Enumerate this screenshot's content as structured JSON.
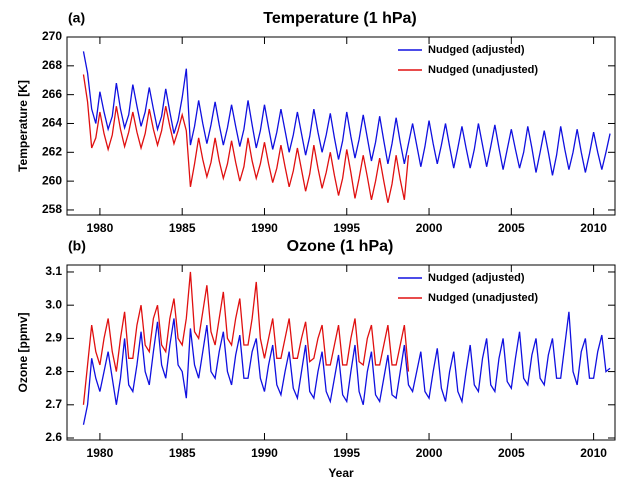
{
  "chart_data": [
    {
      "type": "line",
      "label": "(a)",
      "title": "Temperature (1 hPa)",
      "ylabel": "Temperature [K]",
      "xlim": [
        1978,
        2011.3
      ],
      "xticks": [
        1980,
        1985,
        1990,
        1995,
        2000,
        2005,
        2010
      ],
      "ylim": [
        257.65,
        270
      ],
      "yticks": [
        258,
        260,
        262,
        264,
        266,
        268,
        270
      ],
      "x": [
        1979,
        1979.25,
        1979.5,
        1979.75,
        1980,
        1980.25,
        1980.5,
        1980.75,
        1981,
        1981.25,
        1981.5,
        1981.75,
        1982,
        1982.25,
        1982.5,
        1982.75,
        1983,
        1983.25,
        1983.5,
        1983.75,
        1984,
        1984.25,
        1984.5,
        1984.75,
        1985,
        1985.25,
        1985.5,
        1985.75,
        1986,
        1986.25,
        1986.5,
        1986.75,
        1987,
        1987.25,
        1987.5,
        1987.75,
        1988,
        1988.25,
        1988.5,
        1988.75,
        1989,
        1989.25,
        1989.5,
        1989.75,
        1990,
        1990.25,
        1990.5,
        1990.75,
        1991,
        1991.25,
        1991.5,
        1991.75,
        1992,
        1992.25,
        1992.5,
        1992.75,
        1993,
        1993.25,
        1993.5,
        1993.75,
        1994,
        1994.25,
        1994.5,
        1994.75,
        1995,
        1995.25,
        1995.5,
        1995.75,
        1996,
        1996.25,
        1996.5,
        1996.75,
        1997,
        1997.25,
        1997.5,
        1997.75,
        1998,
        1998.25,
        1998.5,
        1998.75,
        1999,
        1999.25,
        1999.5,
        1999.75,
        2000,
        2000.25,
        2000.5,
        2000.75,
        2001,
        2001.25,
        2001.5,
        2001.75,
        2002,
        2002.25,
        2002.5,
        2002.75,
        2003,
        2003.25,
        2003.5,
        2003.75,
        2004,
        2004.25,
        2004.5,
        2004.75,
        2005,
        2005.25,
        2005.5,
        2005.75,
        2006,
        2006.25,
        2006.5,
        2006.75,
        2007,
        2007.25,
        2007.5,
        2007.75,
        2008,
        2008.25,
        2008.5,
        2008.75,
        2009,
        2009.25,
        2009.5,
        2009.75,
        2010,
        2010.25,
        2010.5,
        2010.75,
        2011
      ],
      "series": [
        {
          "name": "Nudged (adjusted)",
          "color": "#1010e0",
          "values": [
            269.0,
            267.5,
            265.0,
            264.0,
            266.2,
            264.8,
            263.6,
            264.5,
            266.8,
            265.0,
            263.7,
            264.6,
            266.7,
            265.2,
            263.8,
            264.8,
            266.5,
            265.0,
            263.6,
            264.5,
            266.4,
            264.8,
            263.3,
            264.2,
            265.8,
            267.8,
            262.5,
            263.8,
            265.6,
            264.0,
            262.6,
            263.9,
            265.5,
            263.9,
            262.5,
            263.7,
            265.3,
            263.8,
            262.4,
            263.6,
            265.6,
            263.9,
            262.3,
            263.5,
            265.3,
            263.7,
            262.2,
            263.4,
            265.0,
            263.5,
            262.0,
            263.2,
            264.8,
            263.3,
            261.8,
            263.1,
            265.0,
            263.4,
            262.0,
            263.2,
            264.7,
            263.0,
            261.5,
            262.8,
            264.8,
            263.1,
            261.6,
            262.9,
            264.6,
            263.0,
            261.4,
            262.7,
            264.5,
            262.8,
            261.2,
            262.6,
            264.4,
            262.7,
            261.2,
            262.6,
            264.0,
            262.5,
            261.0,
            262.4,
            264.2,
            262.6,
            261.2,
            262.5,
            264.0,
            262.4,
            260.9,
            262.3,
            263.8,
            262.3,
            260.9,
            262.2,
            264.0,
            262.5,
            261.0,
            262.4,
            263.9,
            262.3,
            260.8,
            262.2,
            263.6,
            262.2,
            260.9,
            262.0,
            263.8,
            262.3,
            260.6,
            262.0,
            263.5,
            262.0,
            260.4,
            261.8,
            263.8,
            262.2,
            260.8,
            262.0,
            263.6,
            262.0,
            260.6,
            261.9,
            263.4,
            262.0,
            260.8,
            262.0,
            263.3
          ]
        },
        {
          "name": "Nudged (unadjusted)",
          "color": "#e01010",
          "values": [
            267.4,
            265.5,
            262.3,
            263.0,
            264.8,
            263.3,
            262.2,
            263.2,
            265.2,
            263.6,
            262.4,
            263.4,
            264.8,
            263.4,
            262.3,
            263.3,
            265.0,
            263.6,
            262.5,
            263.5,
            265.2,
            263.8,
            262.6,
            263.5,
            264.6,
            263.5,
            259.6,
            261.2,
            263.0,
            261.5,
            260.3,
            261.3,
            263.0,
            261.4,
            260.2,
            261.2,
            262.8,
            261.3,
            260.0,
            261.0,
            263.0,
            261.4,
            260.2,
            261.2,
            262.7,
            261.2,
            259.9,
            260.9,
            262.5,
            261.0,
            259.6,
            260.7,
            262.3,
            260.8,
            259.3,
            260.5,
            262.5,
            260.9,
            259.5,
            260.6,
            262.0,
            260.4,
            259.0,
            260.2,
            262.2,
            260.6,
            258.8,
            260.2,
            261.8,
            260.3,
            258.7,
            260.0,
            261.6,
            260.0,
            258.5,
            259.8,
            261.8,
            260.1,
            258.7,
            261.8,
            null,
            null,
            null,
            null,
            null,
            null,
            null,
            null,
            null,
            null,
            null,
            null,
            null,
            null,
            null,
            null,
            null,
            null,
            null,
            null,
            null,
            null,
            null,
            null,
            null,
            null,
            null,
            null,
            null,
            null,
            null,
            null,
            null,
            null,
            null,
            null,
            null,
            null,
            null,
            null,
            null,
            null,
            null,
            null,
            null,
            null,
            null,
            null,
            null
          ]
        }
      ]
    },
    {
      "type": "line",
      "label": "(b)",
      "title": "Ozone (1 hPa)",
      "ylabel": "Ozone [ppmv]",
      "xlabel": "Year",
      "xlim": [
        1978,
        2011.3
      ],
      "xticks": [
        1980,
        1985,
        1990,
        1995,
        2000,
        2005,
        2010
      ],
      "ylim": [
        2.594,
        3.121
      ],
      "yticks": [
        2.6,
        2.7,
        2.8,
        2.9,
        {
          "value": 3,
          "label": "3.0"
        },
        3.1
      ],
      "x": [
        1979,
        1979.25,
        1979.5,
        1979.75,
        1980,
        1980.25,
        1980.5,
        1980.75,
        1981,
        1981.25,
        1981.5,
        1981.75,
        1982,
        1982.25,
        1982.5,
        1982.75,
        1983,
        1983.25,
        1983.5,
        1983.75,
        1984,
        1984.25,
        1984.5,
        1984.75,
        1985,
        1985.25,
        1985.5,
        1985.75,
        1986,
        1986.25,
        1986.5,
        1986.75,
        1987,
        1987.25,
        1987.5,
        1987.75,
        1988,
        1988.25,
        1988.5,
        1988.75,
        1989,
        1989.25,
        1989.5,
        1989.75,
        1990,
        1990.25,
        1990.5,
        1990.75,
        1991,
        1991.25,
        1991.5,
        1991.75,
        1992,
        1992.25,
        1992.5,
        1992.75,
        1993,
        1993.25,
        1993.5,
        1993.75,
        1994,
        1994.25,
        1994.5,
        1994.75,
        1995,
        1995.25,
        1995.5,
        1995.75,
        1996,
        1996.25,
        1996.5,
        1996.75,
        1997,
        1997.25,
        1997.5,
        1997.75,
        1998,
        1998.25,
        1998.5,
        1998.75,
        1999,
        1999.25,
        1999.5,
        1999.75,
        2000,
        2000.25,
        2000.5,
        2000.75,
        2001,
        2001.25,
        2001.5,
        2001.75,
        2002,
        2002.25,
        2002.5,
        2002.75,
        2003,
        2003.25,
        2003.5,
        2003.75,
        2004,
        2004.25,
        2004.5,
        2004.75,
        2005,
        2005.25,
        2005.5,
        2005.75,
        2006,
        2006.25,
        2006.5,
        2006.75,
        2007,
        2007.25,
        2007.5,
        2007.75,
        2008,
        2008.25,
        2008.5,
        2008.75,
        2009,
        2009.25,
        2009.5,
        2009.75,
        2010,
        2010.25,
        2010.5,
        2010.75,
        2011
      ],
      "series": [
        {
          "name": "Nudged (adjusted)",
          "color": "#1010e0",
          "values": [
            2.64,
            2.7,
            2.84,
            2.78,
            2.74,
            2.8,
            2.86,
            2.78,
            2.7,
            2.78,
            2.9,
            2.76,
            2.74,
            2.82,
            2.92,
            2.8,
            2.76,
            2.86,
            2.95,
            2.82,
            2.78,
            2.88,
            2.96,
            2.82,
            2.8,
            2.72,
            2.93,
            2.82,
            2.78,
            2.86,
            2.94,
            2.8,
            2.78,
            2.86,
            2.92,
            2.8,
            2.76,
            2.85,
            2.91,
            2.78,
            2.78,
            2.86,
            2.9,
            2.78,
            2.74,
            2.82,
            2.88,
            2.76,
            2.73,
            2.8,
            2.86,
            2.75,
            2.72,
            2.8,
            2.88,
            2.74,
            2.72,
            2.8,
            2.86,
            2.74,
            2.71,
            2.78,
            2.85,
            2.73,
            2.71,
            2.8,
            2.88,
            2.74,
            2.7,
            2.8,
            2.86,
            2.73,
            2.71,
            2.78,
            2.85,
            2.73,
            2.72,
            2.8,
            2.88,
            2.76,
            2.74,
            2.8,
            2.86,
            2.74,
            2.72,
            2.8,
            2.87,
            2.75,
            2.71,
            2.8,
            2.86,
            2.74,
            2.71,
            2.8,
            2.88,
            2.76,
            2.74,
            2.84,
            2.9,
            2.76,
            2.74,
            2.84,
            2.9,
            2.77,
            2.75,
            2.84,
            2.92,
            2.78,
            2.76,
            2.85,
            2.9,
            2.78,
            2.76,
            2.85,
            2.9,
            2.78,
            2.78,
            2.88,
            2.98,
            2.8,
            2.76,
            2.86,
            2.9,
            2.78,
            2.78,
            2.86,
            2.91,
            2.8,
            2.81
          ]
        },
        {
          "name": "Nudged (unadjusted)",
          "color": "#e01010",
          "values": [
            2.7,
            2.82,
            2.94,
            2.86,
            2.82,
            2.9,
            2.96,
            2.86,
            2.8,
            2.9,
            2.98,
            2.84,
            2.84,
            2.94,
            3.0,
            2.88,
            2.86,
            2.96,
            3.0,
            2.88,
            2.86,
            2.96,
            3.02,
            2.9,
            2.88,
            2.96,
            3.1,
            2.92,
            2.9,
            2.98,
            3.06,
            2.92,
            2.88,
            2.96,
            3.04,
            2.9,
            2.88,
            2.96,
            3.02,
            2.88,
            2.88,
            2.96,
            3.07,
            2.9,
            2.84,
            2.9,
            2.96,
            2.84,
            2.84,
            2.9,
            2.96,
            2.84,
            2.84,
            2.9,
            2.95,
            2.83,
            2.84,
            2.9,
            2.94,
            2.82,
            2.82,
            2.88,
            2.94,
            2.82,
            2.82,
            2.9,
            2.96,
            2.83,
            2.82,
            2.9,
            2.94,
            2.82,
            2.82,
            2.88,
            2.94,
            2.82,
            2.82,
            2.88,
            2.94,
            2.8,
            null,
            null,
            null,
            null,
            null,
            null,
            null,
            null,
            null,
            null,
            null,
            null,
            null,
            null,
            null,
            null,
            null,
            null,
            null,
            null,
            null,
            null,
            null,
            null,
            null,
            null,
            null,
            null,
            null,
            null,
            null,
            null,
            null,
            null,
            null,
            null,
            null,
            null,
            null,
            null,
            null,
            null,
            null,
            null,
            null,
            null,
            null,
            null,
            null
          ]
        }
      ]
    }
  ]
}
